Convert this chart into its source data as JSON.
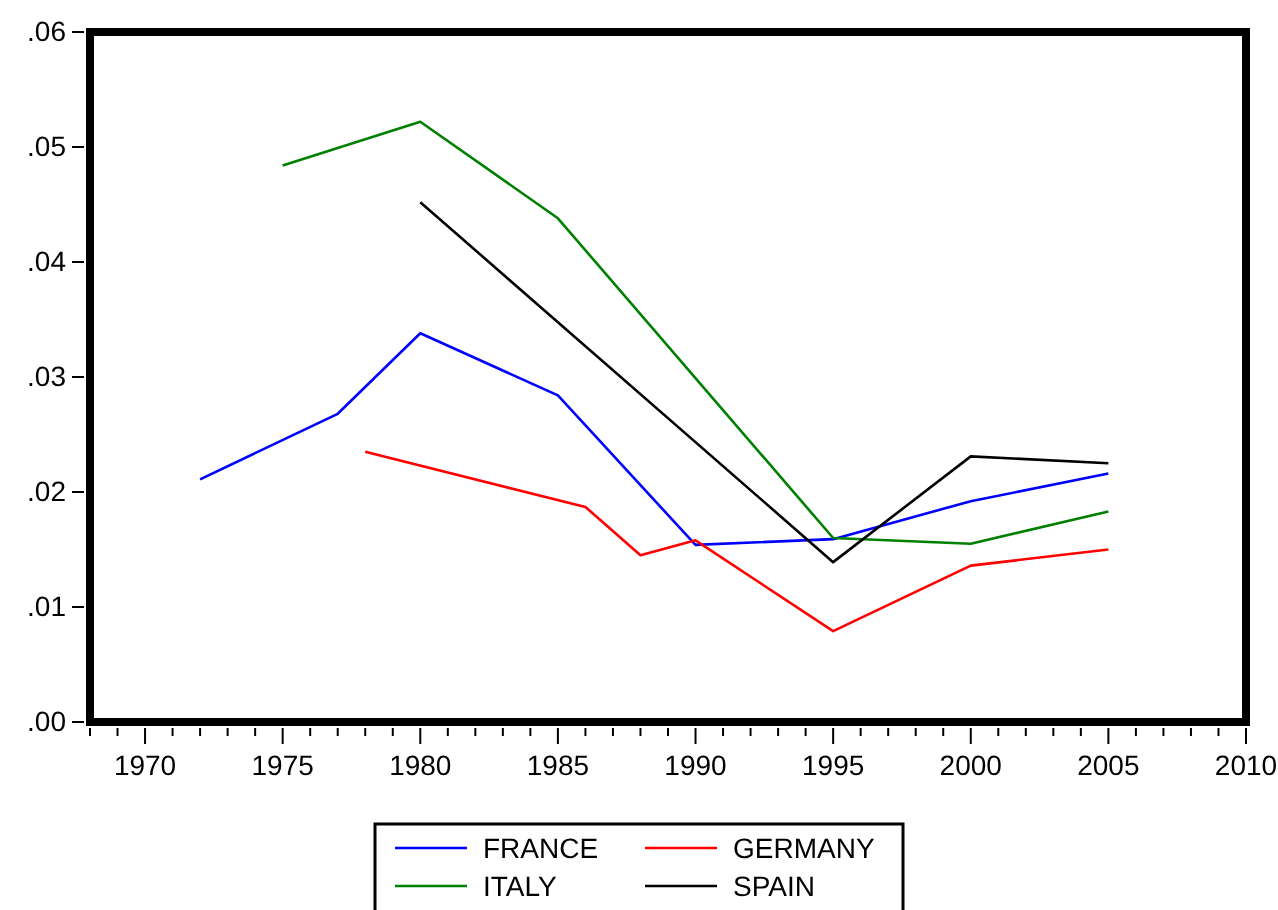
{
  "chart_data": {
    "type": "line",
    "xlim": [
      1968,
      2010
    ],
    "ylim": [
      0,
      0.06
    ],
    "xticks": [
      {
        "value": 1968,
        "label": null
      },
      {
        "value": 1969,
        "label": null
      },
      1970,
      {
        "value": 1971,
        "label": null
      },
      {
        "value": 1972,
        "label": null
      },
      {
        "value": 1973,
        "label": null
      },
      {
        "value": 1974,
        "label": null
      },
      1975,
      {
        "value": 1976,
        "label": null
      },
      {
        "value": 1977,
        "label": null
      },
      {
        "value": 1978,
        "label": null
      },
      {
        "value": 1979,
        "label": null
      },
      1980,
      {
        "value": 1981,
        "label": null
      },
      {
        "value": 1982,
        "label": null
      },
      {
        "value": 1983,
        "label": null
      },
      {
        "value": 1984,
        "label": null
      },
      1985,
      {
        "value": 1986,
        "label": null
      },
      {
        "value": 1987,
        "label": null
      },
      {
        "value": 1988,
        "label": null
      },
      {
        "value": 1989,
        "label": null
      },
      1990,
      {
        "value": 1991,
        "label": null
      },
      {
        "value": 1992,
        "label": null
      },
      {
        "value": 1993,
        "label": null
      },
      {
        "value": 1994,
        "label": null
      },
      1995,
      {
        "value": 1996,
        "label": null
      },
      {
        "value": 1997,
        "label": null
      },
      {
        "value": 1998,
        "label": null
      },
      {
        "value": 1999,
        "label": null
      },
      2000,
      {
        "value": 2001,
        "label": null
      },
      {
        "value": 2002,
        "label": null
      },
      {
        "value": 2003,
        "label": null
      },
      {
        "value": 2004,
        "label": null
      },
      2005,
      {
        "value": 2006,
        "label": null
      },
      {
        "value": 2007,
        "label": null
      },
      {
        "value": 2008,
        "label": null
      },
      {
        "value": 2009,
        "label": null
      },
      2010
    ],
    "yticks": [
      {
        "value": 0,
        "label": ".00"
      },
      {
        "value": 0.01,
        "label": ".01"
      },
      {
        "value": 0.02,
        "label": ".02"
      },
      {
        "value": 0.03,
        "label": ".03"
      },
      {
        "value": 0.04,
        "label": ".04"
      },
      {
        "value": 0.05,
        "label": ".05"
      },
      {
        "value": 0.06,
        "label": ".06"
      }
    ],
    "grid": false,
    "legend": "bottom",
    "line_style": "solid",
    "series": [
      {
        "name": "FRANCE",
        "color": "#0000ff",
        "x": [
          1972,
          1977,
          1980,
          1985,
          1990,
          1995,
          2000,
          2005
        ],
        "values": [
          0.0211,
          0.0268,
          0.0338,
          0.0284,
          0.0154,
          0.0159,
          0.0192,
          0.0216
        ]
      },
      {
        "name": "GERMANY",
        "color": "#ff0000",
        "x": [
          1978,
          1986,
          1988,
          1990,
          1995,
          2000,
          2005
        ],
        "values": [
          0.0235,
          0.0187,
          0.0145,
          0.0158,
          0.0079,
          0.0136,
          0.015
        ]
      },
      {
        "name": "ITALY",
        "color": "#008000",
        "x": [
          1975,
          1980,
          1985,
          1995,
          2000,
          2005
        ],
        "values": [
          0.0484,
          0.0522,
          0.0438,
          0.016,
          0.0155,
          0.0183
        ]
      },
      {
        "name": "SPAIN",
        "color": "#000000",
        "x": [
          1980,
          1995,
          2000,
          2005
        ],
        "values": [
          0.0452,
          0.0139,
          0.0231,
          0.0225
        ]
      }
    ]
  }
}
